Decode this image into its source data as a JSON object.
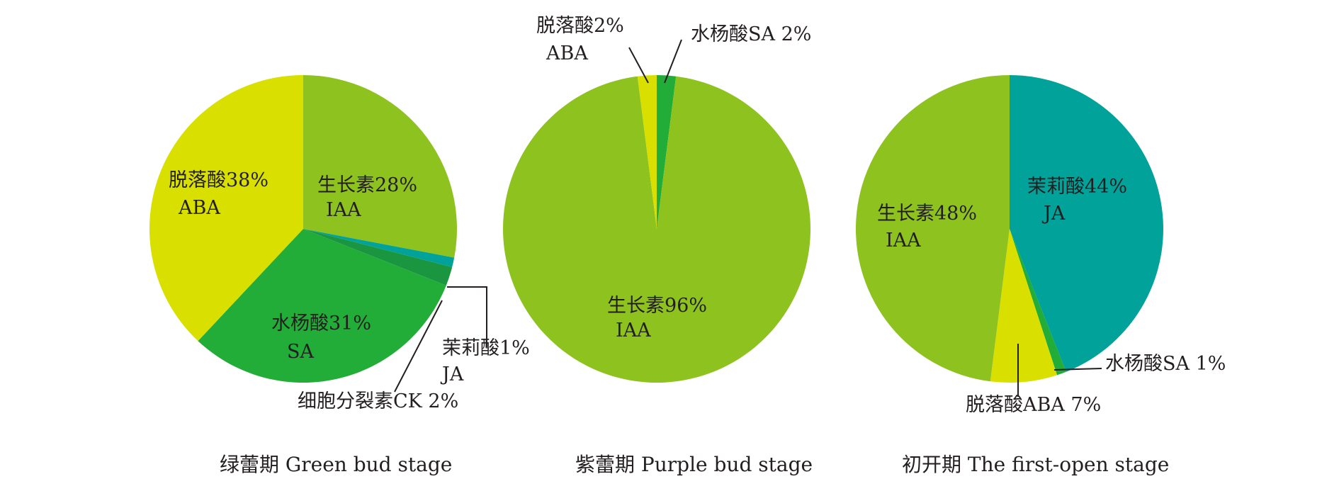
{
  "chart_data": [
    {
      "type": "pie",
      "title": "绿蕾期 Green bud stage",
      "slices": [
        {
          "name": "生长素",
          "abbr": "IAA",
          "value": 28,
          "color": "#8dc21f"
        },
        {
          "name": "茉莉酸",
          "abbr": "JA",
          "value": 1,
          "color": "#00a29a"
        },
        {
          "name": "细胞分裂素",
          "abbr": "CK",
          "value": 2,
          "color": "#1a9641"
        },
        {
          "name": "水杨酸",
          "abbr": "SA",
          "value": 31,
          "color": "#22ac38"
        },
        {
          "name": "脱落酸",
          "abbr": "ABA",
          "value": 38,
          "color": "#d9e000"
        }
      ],
      "labels": [
        "生长素28%",
        "IAA",
        "茉莉酸1%",
        "JA",
        "细胞分裂素CK 2%",
        "水杨酸31%",
        "SA",
        "脱落酸38%",
        "ABA"
      ]
    },
    {
      "type": "pie",
      "title": "紫蕾期 Purple bud stage",
      "slices": [
        {
          "name": "水杨酸",
          "abbr": "SA",
          "value": 2,
          "color": "#22ac38"
        },
        {
          "name": "生长素",
          "abbr": "IAA",
          "value": 96,
          "color": "#8dc21f"
        },
        {
          "name": "脱落酸",
          "abbr": "ABA",
          "value": 2,
          "color": "#d9e000"
        }
      ],
      "labels": [
        "水杨酸SA 2%",
        "生长素96%",
        "IAA",
        "脱落酸2%",
        "ABA"
      ]
    },
    {
      "type": "pie",
      "title": "初开期 The first-open stage",
      "slices": [
        {
          "name": "茉莉酸",
          "abbr": "JA",
          "value": 44,
          "color": "#00a29a"
        },
        {
          "name": "水杨酸",
          "abbr": "SA",
          "value": 1,
          "color": "#22ac38"
        },
        {
          "name": "脱落酸",
          "abbr": "ABA",
          "value": 7,
          "color": "#d9e000"
        },
        {
          "name": "生长素",
          "abbr": "IAA",
          "value": 48,
          "color": "#8dc21f"
        }
      ],
      "labels": [
        "茉莉酸44%",
        "JA",
        "水杨酸SA 1%",
        "脱落酸ABA 7%",
        "生长素48%",
        "IAA"
      ]
    }
  ]
}
